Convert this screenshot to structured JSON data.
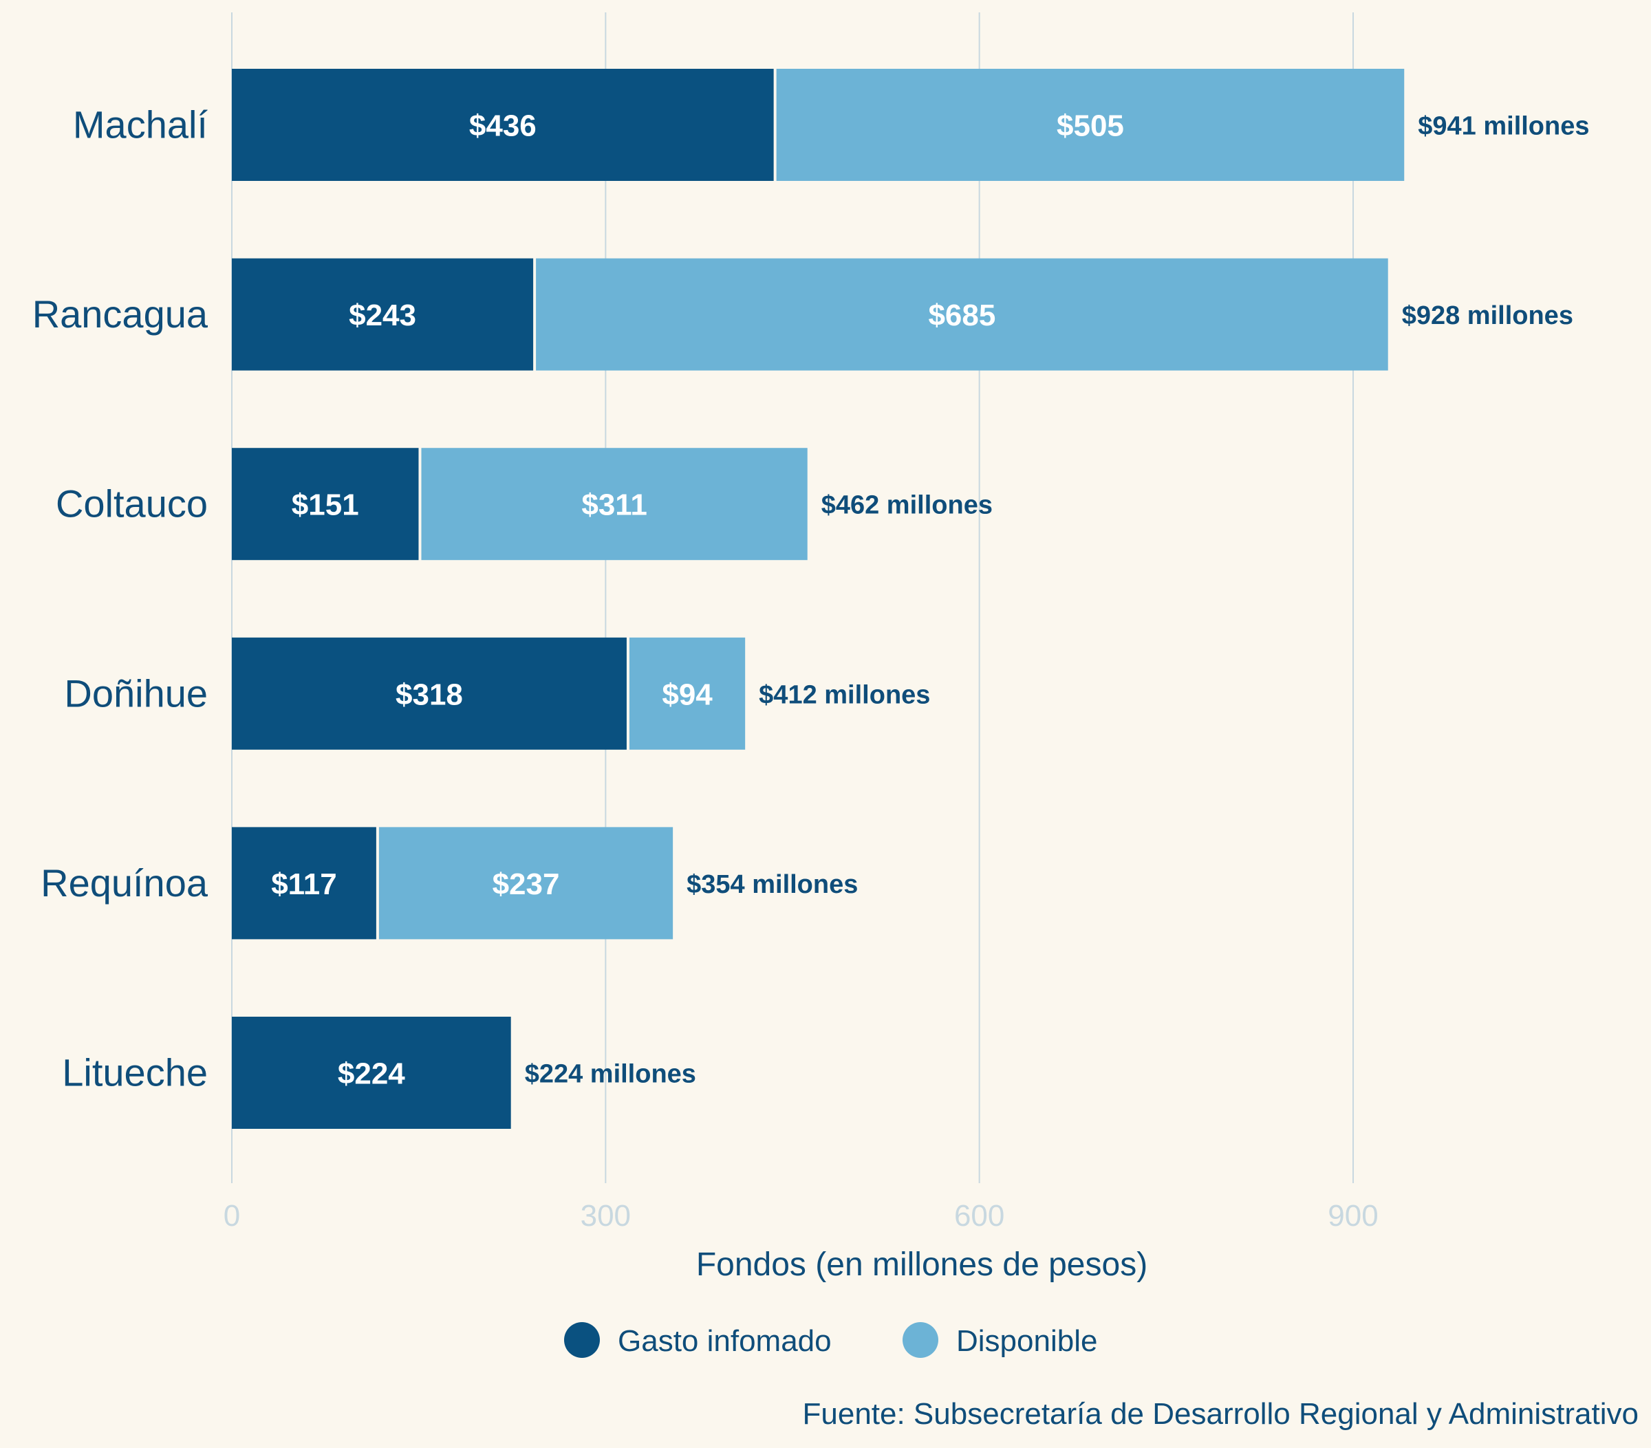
{
  "chart_data": {
    "type": "bar",
    "orientation": "horizontal",
    "stacked": true,
    "categories": [
      "Machalí",
      "Rancagua",
      "Coltauco",
      "Doñihue",
      "Requínoa",
      "Litueche"
    ],
    "series": [
      {
        "name": "Gasto infomado",
        "values": [
          436,
          243,
          151,
          318,
          117,
          224
        ],
        "color": "#0a5180",
        "data_labels": [
          "$436",
          "$243",
          "$151",
          "$318",
          "$117",
          "$224"
        ]
      },
      {
        "name": "Disponible",
        "values": [
          505,
          685,
          311,
          94,
          237,
          0
        ],
        "color": "#6cb3d6",
        "data_labels": [
          "$505",
          "$685",
          "$311",
          "$94",
          "$237",
          ""
        ]
      }
    ],
    "totals": [
      941,
      928,
      462,
      412,
      354,
      224
    ],
    "total_labels": [
      "$941 millones",
      "$928 millones",
      "$462 millones",
      "$412 millones",
      "$354 millones",
      "$224 millones"
    ],
    "xlabel": "Fondos (en millones de pesos)",
    "xlim": [
      0,
      1100
    ],
    "xticks": [
      0,
      300,
      600,
      900
    ],
    "xtick_labels": [
      "0",
      "300",
      "600",
      "900"
    ],
    "grid": true,
    "legend_position": "bottom-center",
    "source": "Fuente: Subsecretaría de Desarrollo Regional y Administrativo"
  },
  "colors": {
    "background": "#fbf7ee",
    "grid": "#c8d8e0",
    "text": "#0f4d7a",
    "tick_text": "#c8d8e0"
  }
}
